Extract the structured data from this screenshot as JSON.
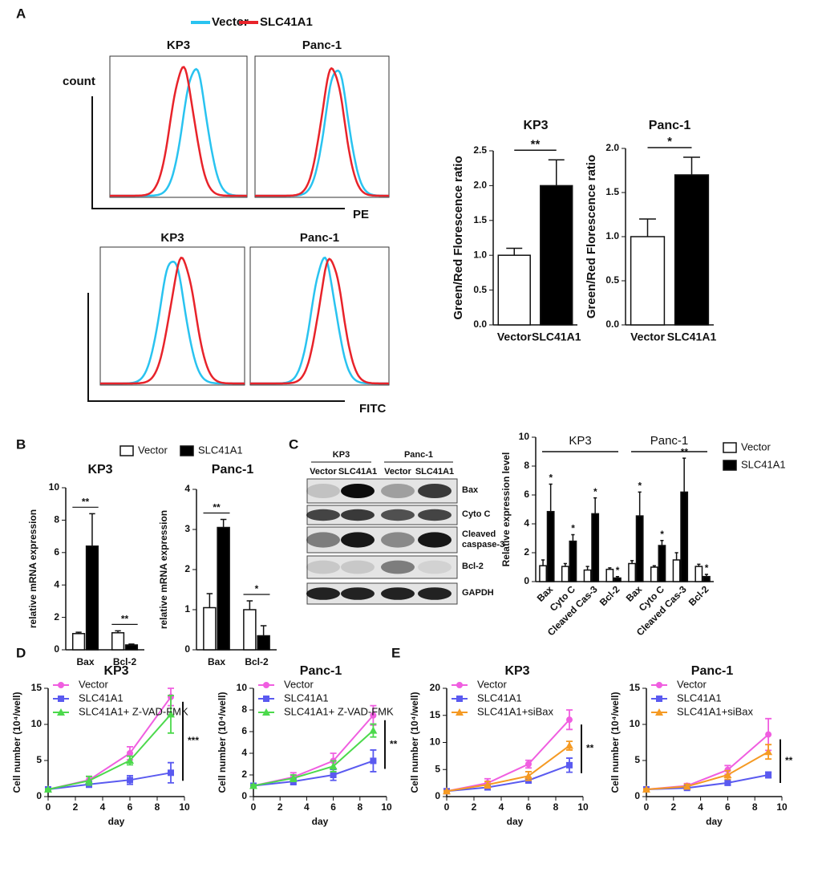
{
  "panels": [
    "A",
    "B",
    "C",
    "D",
    "E"
  ],
  "flow": {
    "legend": [
      {
        "name": "Vector",
        "color": "#29c3f0"
      },
      {
        "name": "SLC41A1",
        "color": "#e8232a"
      }
    ],
    "y_label": "count",
    "pe": {
      "titles": [
        "KP3",
        "Panc-1"
      ],
      "x_label": "PE"
    },
    "fitc": {
      "titles": [
        "KP3",
        "Panc-1"
      ],
      "x_label": "FITC"
    }
  },
  "blot": {
    "groups": [
      "KP3",
      "Panc-1"
    ],
    "lanes": [
      "Vector",
      "SLC41A1",
      "Vector",
      "SLC41A1"
    ],
    "rows": [
      "Bax",
      "Cyto C",
      "Cleaved caspase-3",
      "Bcl-2",
      "GAPDH"
    ]
  },
  "chart_data": [
    {
      "type": "bar",
      "title": "KP3",
      "y_label": "Green/Red Florescence ratio",
      "categories": [
        "Vector",
        "SLC41A1"
      ],
      "values": [
        1.0,
        2.0
      ],
      "errors": [
        0.1,
        0.37
      ],
      "colors": [
        "#ffffff",
        "#000000"
      ],
      "ylim": [
        0,
        2.5
      ],
      "yticks": [
        {
          "value": 0,
          "label": "0.0"
        },
        0.5,
        {
          "value": 1,
          "label": "1.0"
        },
        1.5,
        {
          "value": 2,
          "label": "2.0"
        },
        2.5
      ],
      "annotation": "**"
    },
    {
      "type": "bar",
      "title": "Panc-1",
      "y_label": "Green/Red Florescence ratio",
      "categories": [
        "Vector",
        "SLC41A1"
      ],
      "values": [
        1.0,
        1.7
      ],
      "errors": [
        0.2,
        0.2
      ],
      "colors": [
        "#ffffff",
        "#000000"
      ],
      "ylim": [
        0,
        2.0
      ],
      "yticks": [
        {
          "value": 0,
          "label": "0.0"
        },
        0.5,
        {
          "value": 1,
          "label": "1.0"
        },
        1.5,
        {
          "value": 2,
          "label": "2.0"
        }
      ],
      "annotation": "*"
    },
    {
      "type": "bar",
      "title": "KP3",
      "y_label": "relative mRNA expression",
      "legend": "top",
      "categories": [
        "Bax",
        "Bcl-2"
      ],
      "series": [
        {
          "name": "Vector",
          "color": "#ffffff",
          "values": [
            1.0,
            1.05
          ],
          "errors": [
            0.08,
            0.12
          ]
        },
        {
          "name": "SLC41A1",
          "color": "#000000",
          "values": [
            6.4,
            0.3
          ],
          "errors": [
            2.0,
            0.05
          ]
        }
      ],
      "ylim": [
        0,
        10
      ],
      "yticks": [
        0,
        2,
        4,
        6,
        8,
        10
      ],
      "annotations": [
        "**",
        "**"
      ]
    },
    {
      "type": "bar",
      "title": "Panc-1",
      "y_label": "relative mRNA expression",
      "categories": [
        "Bax",
        "Bcl-2"
      ],
      "series": [
        {
          "name": "Vector",
          "color": "#ffffff",
          "values": [
            1.05,
            1.0
          ],
          "errors": [
            0.35,
            0.22
          ]
        },
        {
          "name": "SLC41A1",
          "color": "#000000",
          "values": [
            3.05,
            0.35
          ],
          "errors": [
            0.2,
            0.25
          ]
        }
      ],
      "ylim": [
        0,
        4
      ],
      "yticks": [
        0,
        1,
        2,
        3,
        4
      ],
      "annotations": [
        "**",
        "*"
      ]
    },
    {
      "type": "bar",
      "y_label": "Relative expression level",
      "legend": "right",
      "group_labels": [
        "KP3",
        "Panc-1"
      ],
      "categories": [
        "Bax",
        "Cyto C",
        "Cleaved Cas-3",
        "Bcl-2",
        "Bax",
        "Cyto C",
        "Cleaved Cas-3",
        "Bcl-2"
      ],
      "series": [
        {
          "name": "Vector",
          "color": "#ffffff",
          "values": [
            1.1,
            1.05,
            0.8,
            0.85,
            1.25,
            1.0,
            1.5,
            1.05
          ],
          "errors": [
            0.4,
            0.2,
            0.25,
            0.1,
            0.2,
            0.1,
            0.5,
            0.15
          ]
        },
        {
          "name": "SLC41A1",
          "color": "#000000",
          "values": [
            4.85,
            2.8,
            4.7,
            0.25,
            4.55,
            2.5,
            6.2,
            0.35
          ],
          "errors": [
            1.9,
            0.45,
            1.1,
            0.1,
            1.65,
            0.35,
            2.35,
            0.15
          ]
        }
      ],
      "ylim": [
        0,
        10
      ],
      "yticks": [
        0,
        2,
        4,
        6,
        8,
        10
      ],
      "stars": [
        "*",
        "*",
        "*",
        "*",
        "*",
        "*",
        "**",
        "*"
      ]
    },
    {
      "type": "line",
      "title": "KP3",
      "x_label": "day",
      "y_label": "Cell number (10⁴/well)",
      "legend": "upper left",
      "x": [
        0,
        3,
        6,
        9
      ],
      "series": [
        {
          "name": "Vector",
          "color": "#f05ee0",
          "values": [
            1,
            2.3,
            6,
            13.8
          ],
          "errors": [
            0.1,
            0.5,
            0.9,
            1.2
          ]
        },
        {
          "name": "SLC41A1",
          "color": "#5a5af0",
          "values": [
            1,
            1.7,
            2.3,
            3.3
          ],
          "errors": [
            0.1,
            0.4,
            0.6,
            1.4
          ]
        },
        {
          "name": "SLC41A1+ Z-VAD-FMK",
          "color": "#4cd94c",
          "values": [
            1,
            2.2,
            5,
            11.4
          ],
          "errors": [
            0.1,
            0.6,
            0.6,
            2.6
          ]
        }
      ],
      "xlim": [
        0,
        10
      ],
      "xticks": [
        0,
        2,
        4,
        6,
        8,
        10
      ],
      "ylim": [
        0,
        15
      ],
      "yticks": [
        0,
        5,
        10,
        15
      ],
      "annotation": "***"
    },
    {
      "type": "line",
      "title": "Panc-1",
      "x_label": "day",
      "y_label": "Cell number (10⁴/well)",
      "legend": "upper left",
      "x": [
        0,
        3,
        6,
        9
      ],
      "series": [
        {
          "name": "Vector",
          "color": "#f05ee0",
          "values": [
            1,
            1.8,
            3.3,
            7.5
          ],
          "errors": [
            0.1,
            0.4,
            0.7,
            0.9
          ]
        },
        {
          "name": "SLC41A1",
          "color": "#5a5af0",
          "values": [
            1,
            1.4,
            2,
            3.3
          ],
          "errors": [
            0.1,
            0.3,
            0.5,
            1.0
          ]
        },
        {
          "name": "SLC41A1+ Z-VAD-FMK",
          "color": "#4cd94c",
          "values": [
            1,
            1.7,
            2.8,
            6.1
          ],
          "errors": [
            0.1,
            0.3,
            0.5,
            0.6
          ]
        }
      ],
      "xlim": [
        0,
        10
      ],
      "xticks": [
        0,
        2,
        4,
        6,
        8,
        10
      ],
      "ylim": [
        0,
        10
      ],
      "yticks": [
        0,
        2,
        4,
        6,
        8,
        10
      ],
      "annotation": "**"
    },
    {
      "type": "line",
      "title": "KP3",
      "x_label": "day",
      "y_label": "Cell number (10⁴/well)",
      "legend": "upper left",
      "x": [
        0,
        3,
        6,
        9
      ],
      "series": [
        {
          "name": "Vector",
          "color": "#f05ee0",
          "values": [
            1,
            2.5,
            6,
            14.2
          ],
          "errors": [
            0.1,
            0.8,
            0.7,
            1.8
          ]
        },
        {
          "name": "SLC41A1",
          "color": "#5a5af0",
          "values": [
            1,
            1.7,
            3,
            5.8
          ],
          "errors": [
            0.1,
            0.4,
            0.5,
            1.3
          ]
        },
        {
          "name": "SLC41A1+siBax",
          "color": "#f59a23",
          "values": [
            1,
            2.2,
            3.8,
            9.4
          ],
          "errors": [
            0.1,
            0.6,
            0.8,
            0.8
          ]
        }
      ],
      "xlim": [
        0,
        10
      ],
      "xticks": [
        0,
        2,
        4,
        6,
        8,
        10
      ],
      "ylim": [
        0,
        20
      ],
      "yticks": [
        0,
        5,
        10,
        15,
        20
      ],
      "annotation": "**"
    },
    {
      "type": "line",
      "title": "Panc-1",
      "x_label": "day",
      "y_label": "Cell number (10⁴/well)",
      "legend": "upper left",
      "x": [
        0,
        3,
        6,
        9
      ],
      "series": [
        {
          "name": "Vector",
          "color": "#f05ee0",
          "values": [
            1,
            1.5,
            3.7,
            8.6
          ],
          "errors": [
            0.1,
            0.3,
            0.6,
            2.2
          ]
        },
        {
          "name": "SLC41A1",
          "color": "#5a5af0",
          "values": [
            1,
            1.2,
            1.9,
            3
          ],
          "errors": [
            0.1,
            0.2,
            0.3,
            0.4
          ]
        },
        {
          "name": "SLC41A1+siBax",
          "color": "#f59a23",
          "values": [
            1,
            1.4,
            3,
            6.2
          ],
          "errors": [
            0.1,
            0.3,
            0.6,
            1.0
          ]
        }
      ],
      "xlim": [
        0,
        10
      ],
      "xticks": [
        0,
        2,
        4,
        6,
        8,
        10
      ],
      "ylim": [
        0,
        15
      ],
      "yticks": [
        0,
        5,
        10,
        15
      ],
      "annotation": "**"
    }
  ]
}
